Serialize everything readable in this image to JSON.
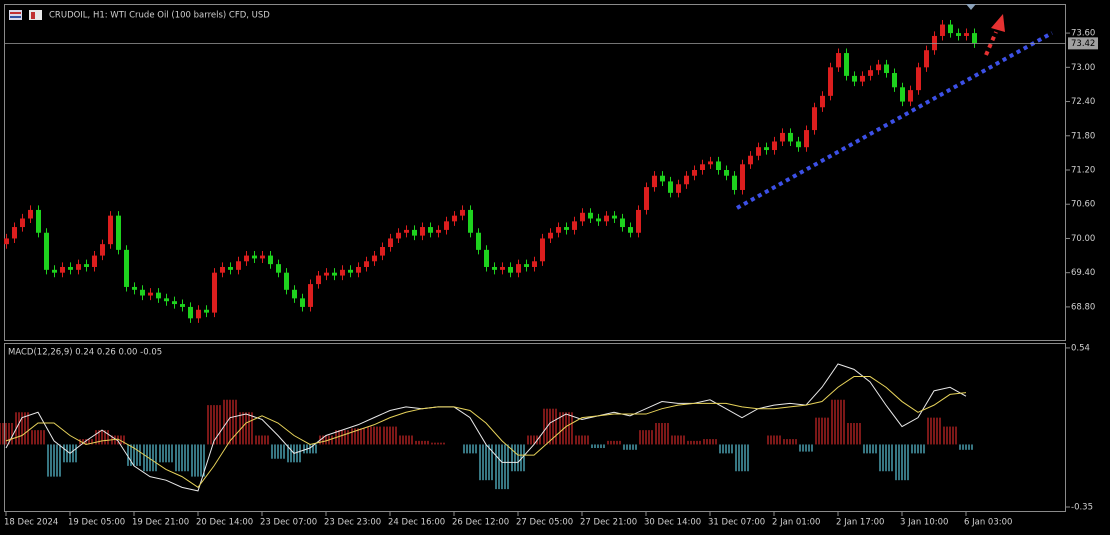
{
  "chart_data": [
    {
      "type": "candlestick",
      "title": "CRUDOIL, H1:  WTI Crude Oil (100 barrels) CFD, USD",
      "open": [
        69.9,
        70.0,
        70.2,
        70.35,
        70.5,
        70.1,
        69.45,
        69.4,
        69.5,
        69.45,
        69.55,
        69.5,
        69.7,
        69.9,
        70.4,
        69.8,
        69.15,
        69.1,
        69.0,
        69.05,
        68.95,
        68.9,
        68.85,
        68.8,
        68.6,
        68.75,
        68.7,
        69.4,
        69.5,
        69.45,
        69.6,
        69.7,
        69.65,
        69.7,
        69.55,
        69.4,
        69.1,
        68.95,
        68.8,
        69.2,
        69.35,
        69.4,
        69.35,
        69.45,
        69.4,
        69.5,
        69.6,
        69.7,
        69.85,
        70.0,
        70.1,
        70.15,
        70.05,
        70.2,
        70.1,
        70.15,
        70.3,
        70.4,
        70.5,
        70.1,
        69.8,
        69.5,
        69.45,
        69.5,
        69.4,
        69.55,
        69.5,
        69.6,
        70.0,
        70.1,
        70.2,
        70.15,
        70.3,
        70.45,
        70.35,
        70.3,
        70.4,
        70.35,
        70.2,
        70.1,
        70.5,
        70.9,
        71.1,
        71.0,
        70.8,
        70.95,
        71.1,
        71.2,
        71.3,
        71.35,
        71.2,
        71.1,
        70.85,
        71.3,
        71.45,
        71.6,
        71.55,
        71.7,
        71.85,
        71.7,
        71.6,
        71.9,
        72.3,
        72.5,
        73.0,
        73.25,
        72.85,
        72.75,
        72.85,
        72.95,
        73.05,
        72.9,
        72.65,
        72.4,
        72.6,
        73.0,
        73.3,
        73.55,
        73.75,
        73.6,
        73.55,
        73.6
      ],
      "high": [
        70.08,
        70.28,
        70.43,
        70.58,
        70.58,
        70.18,
        69.53,
        69.58,
        69.58,
        69.63,
        69.63,
        69.78,
        69.98,
        70.48,
        70.48,
        69.88,
        69.23,
        69.18,
        69.13,
        69.13,
        69.03,
        68.98,
        68.93,
        68.88,
        68.83,
        68.83,
        69.48,
        69.58,
        69.58,
        69.68,
        69.78,
        69.78,
        69.78,
        69.78,
        69.63,
        69.48,
        69.18,
        69.03,
        69.28,
        69.43,
        69.48,
        69.48,
        69.53,
        69.53,
        69.58,
        69.68,
        69.78,
        69.93,
        70.08,
        70.18,
        70.23,
        70.23,
        70.28,
        70.28,
        70.23,
        70.38,
        70.48,
        70.58,
        70.58,
        70.18,
        69.88,
        69.58,
        69.58,
        69.58,
        69.63,
        69.63,
        69.68,
        70.08,
        70.18,
        70.28,
        70.28,
        70.38,
        70.53,
        70.53,
        70.43,
        70.48,
        70.48,
        70.43,
        70.28,
        70.58,
        70.98,
        71.18,
        71.18,
        71.08,
        71.03,
        71.18,
        71.28,
        71.38,
        71.43,
        71.43,
        71.28,
        71.18,
        71.38,
        71.53,
        71.68,
        71.68,
        71.78,
        71.93,
        71.93,
        71.78,
        71.98,
        72.38,
        72.58,
        73.08,
        73.33,
        73.33,
        72.93,
        72.93,
        73.03,
        73.13,
        73.13,
        72.98,
        72.73,
        72.68,
        73.08,
        73.38,
        73.63,
        73.83,
        73.83,
        73.68,
        73.68,
        73.68
      ],
      "low": [
        69.82,
        69.92,
        70.12,
        70.27,
        70.02,
        69.37,
        69.32,
        69.32,
        69.37,
        69.37,
        69.42,
        69.42,
        69.62,
        69.82,
        69.72,
        69.07,
        69.02,
        68.92,
        68.92,
        68.87,
        68.82,
        68.77,
        68.72,
        68.52,
        68.52,
        68.62,
        68.62,
        69.32,
        69.37,
        69.37,
        69.52,
        69.57,
        69.57,
        69.47,
        69.32,
        69.02,
        68.87,
        68.72,
        68.72,
        69.12,
        69.27,
        69.27,
        69.27,
        69.32,
        69.32,
        69.42,
        69.52,
        69.62,
        69.77,
        69.92,
        70.02,
        69.97,
        69.97,
        70.02,
        70.02,
        70.07,
        70.22,
        70.32,
        70.02,
        69.72,
        69.42,
        69.37,
        69.37,
        69.32,
        69.32,
        69.42,
        69.42,
        69.52,
        69.92,
        70.02,
        70.07,
        70.07,
        70.22,
        70.27,
        70.22,
        70.22,
        70.27,
        70.12,
        70.02,
        70.02,
        70.42,
        70.82,
        70.92,
        70.72,
        70.72,
        70.87,
        71.02,
        71.12,
        71.22,
        71.12,
        71.02,
        70.77,
        70.77,
        71.22,
        71.37,
        71.47,
        71.47,
        71.62,
        71.62,
        71.52,
        71.52,
        71.82,
        72.22,
        72.42,
        72.92,
        72.77,
        72.67,
        72.67,
        72.77,
        72.87,
        72.82,
        72.57,
        72.32,
        72.32,
        72.52,
        72.92,
        73.22,
        73.47,
        73.52,
        73.47,
        73.47,
        73.34
      ],
      "close": [
        70.0,
        70.2,
        70.35,
        70.5,
        70.1,
        69.45,
        69.4,
        69.5,
        69.45,
        69.55,
        69.5,
        69.7,
        69.9,
        70.4,
        69.8,
        69.15,
        69.1,
        69.0,
        69.05,
        68.95,
        68.9,
        68.85,
        68.8,
        68.6,
        68.75,
        68.7,
        69.4,
        69.5,
        69.45,
        69.6,
        69.7,
        69.65,
        69.7,
        69.55,
        69.4,
        69.1,
        68.95,
        68.8,
        69.2,
        69.35,
        69.4,
        69.35,
        69.45,
        69.4,
        69.5,
        69.6,
        69.7,
        69.85,
        70.0,
        70.1,
        70.15,
        70.05,
        70.2,
        70.1,
        70.15,
        70.3,
        70.4,
        70.5,
        70.1,
        69.8,
        69.5,
        69.45,
        69.5,
        69.4,
        69.55,
        69.5,
        69.6,
        70.0,
        70.1,
        70.2,
        70.15,
        70.3,
        70.45,
        70.35,
        70.3,
        70.4,
        70.35,
        70.2,
        70.1,
        70.5,
        70.9,
        71.1,
        71.0,
        70.8,
        70.95,
        71.1,
        71.2,
        71.3,
        71.35,
        71.2,
        71.1,
        70.85,
        71.3,
        71.45,
        71.6,
        71.55,
        71.7,
        71.85,
        71.7,
        71.6,
        71.9,
        72.3,
        72.5,
        73.0,
        73.25,
        72.85,
        72.75,
        72.85,
        72.95,
        73.05,
        72.9,
        72.65,
        72.4,
        72.6,
        73.0,
        73.3,
        73.55,
        73.75,
        73.6,
        73.55,
        73.6,
        73.42
      ],
      "up_color": "#dc1e1e",
      "down_color": "#1ed21e",
      "last_price": 73.42,
      "ylim": [
        68.22,
        74.11
      ],
      "yticks": [
        {
          "value": 73.6,
          "label": "73.60"
        },
        {
          "value": 73.0,
          "label": "73.00"
        },
        {
          "value": 72.4,
          "label": "72.40"
        },
        {
          "value": 71.8,
          "label": "71.80"
        },
        {
          "value": 71.2,
          "label": "71.20"
        },
        {
          "value": 70.6,
          "label": "70.60"
        },
        {
          "value": 70.0,
          "label": "70.00"
        },
        {
          "value": 69.4,
          "label": "69.40"
        },
        {
          "value": 68.8,
          "label": "68.80"
        }
      ],
      "xticks": [
        {
          "value": 0,
          "label": "18 Dec 2024"
        },
        {
          "value": 8,
          "label": "19 Dec 05:00"
        },
        {
          "value": 16,
          "label": "19 Dec 21:00"
        },
        {
          "value": 24,
          "label": "20 Dec 14:00"
        },
        {
          "value": 32,
          "label": "23 Dec 07:00"
        },
        {
          "value": 40,
          "label": "23 Dec 23:00"
        },
        {
          "value": 48,
          "label": "24 Dec 16:00"
        },
        {
          "value": 56,
          "label": "26 Dec 12:00"
        },
        {
          "value": 64,
          "label": "27 Dec 05:00"
        },
        {
          "value": 72,
          "label": "27 Dec 21:00"
        },
        {
          "value": 80,
          "label": "30 Dec 14:00"
        },
        {
          "value": 88,
          "label": "31 Dec 07:00"
        },
        {
          "value": 96,
          "label": "2 Jan 01:00"
        },
        {
          "value": 104,
          "label": "2 Jan 17:00"
        },
        {
          "value": 112,
          "label": "3 Jan 10:00"
        },
        {
          "value": 120,
          "label": "6 Jan 03:00"
        }
      ]
    },
    {
      "type": "macd",
      "title": "MACD(12,26,9) 0.24 0.26 0.00 -0.05",
      "histogram": {
        "positive_color": "#d02828",
        "negative_color": "#5cc4d8",
        "values": [
          0.12,
          0.18,
          0.08,
          -0.18,
          -0.1,
          0.03,
          0.08,
          0.05,
          -0.12,
          -0.15,
          -0.1,
          -0.15,
          -0.18,
          0.22,
          0.25,
          0.18,
          0.05,
          -0.08,
          -0.1,
          -0.05,
          0.05,
          0.08,
          0.09,
          0.1,
          0.1,
          0.05,
          0.02,
          0.01,
          0.0,
          -0.05,
          -0.2,
          -0.25,
          -0.15,
          0.05,
          0.2,
          0.18,
          0.05,
          -0.02,
          0.02,
          -0.03,
          0.08,
          0.12,
          0.05,
          0.02,
          0.03,
          -0.05,
          -0.15,
          0.0,
          0.05,
          0.03,
          -0.04,
          0.15,
          0.25,
          0.12,
          -0.05,
          -0.15,
          -0.2,
          -0.05,
          0.15,
          0.1,
          -0.03
        ]
      },
      "series": [
        {
          "color": "#e8e8e8",
          "values": [
            -0.02,
            0.15,
            0.18,
            0.02,
            -0.05,
            0.02,
            0.08,
            0.02,
            -0.12,
            -0.18,
            -0.2,
            -0.24,
            -0.26,
            0.02,
            0.15,
            0.17,
            0.14,
            0.05,
            -0.05,
            -0.02,
            0.05,
            0.08,
            0.11,
            0.15,
            0.19,
            0.21,
            0.2,
            0.21,
            0.21,
            0.15,
            0.0,
            -0.1,
            -0.1,
            0.0,
            0.12,
            0.17,
            0.14,
            0.16,
            0.18,
            0.16,
            0.2,
            0.24,
            0.23,
            0.23,
            0.25,
            0.2,
            0.15,
            0.2,
            0.22,
            0.23,
            0.22,
            0.32,
            0.45,
            0.42,
            0.35,
            0.22,
            0.1,
            0.15,
            0.3,
            0.32,
            0.27
          ]
        },
        {
          "color": "#e6d25a",
          "values": [
            0.02,
            0.05,
            0.12,
            0.12,
            0.05,
            0.0,
            0.02,
            0.03,
            -0.02,
            -0.08,
            -0.14,
            -0.18,
            -0.24,
            -0.12,
            0.02,
            0.12,
            0.16,
            0.12,
            0.05,
            0.0,
            0.02,
            0.05,
            0.08,
            0.11,
            0.15,
            0.18,
            0.2,
            0.21,
            0.21,
            0.19,
            0.12,
            0.02,
            -0.06,
            -0.06,
            0.02,
            0.1,
            0.15,
            0.16,
            0.17,
            0.17,
            0.17,
            0.2,
            0.22,
            0.23,
            0.23,
            0.23,
            0.21,
            0.2,
            0.2,
            0.21,
            0.22,
            0.24,
            0.32,
            0.38,
            0.38,
            0.32,
            0.24,
            0.18,
            0.22,
            0.28,
            0.29
          ]
        }
      ],
      "ylim": [
        -0.378,
        0.562
      ],
      "yticks": [
        0.54,
        -0.35
      ]
    }
  ]
}
